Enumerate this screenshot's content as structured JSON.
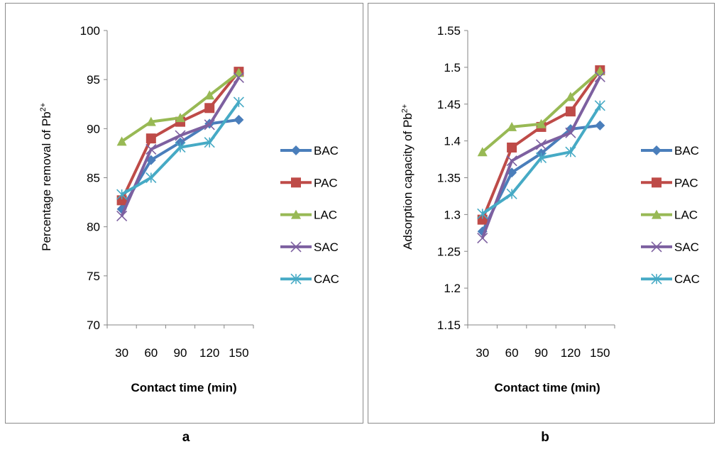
{
  "captions": [
    "a",
    "b"
  ],
  "chart_data": [
    {
      "type": "line",
      "xlabel": "Contact time (min)",
      "ylabel": "Percentage removal of Pb",
      "ylabel_sup": "2+",
      "ylim": [
        70,
        100
      ],
      "yticks": [
        "70",
        "75",
        "80",
        "85",
        "90",
        "95",
        "100"
      ],
      "categories": [
        "30",
        "60",
        "90",
        "120",
        "150"
      ],
      "legend_position": "right",
      "series": [
        {
          "name": "BAC",
          "color": "#4a7ebb",
          "marker": "diamond",
          "values": [
            81.8,
            86.8,
            88.6,
            90.5,
            90.9
          ]
        },
        {
          "name": "PAC",
          "color": "#be4b48",
          "marker": "square",
          "values": [
            82.7,
            89.0,
            90.7,
            92.1,
            95.8
          ]
        },
        {
          "name": "LAC",
          "color": "#98b954",
          "marker": "triangle",
          "values": [
            88.7,
            90.7,
            91.1,
            93.4,
            95.7
          ]
        },
        {
          "name": "SAC",
          "color": "#7d60a0",
          "marker": "x",
          "values": [
            81.1,
            87.9,
            89.3,
            90.4,
            95.2
          ]
        },
        {
          "name": "CAC",
          "color": "#46aac5",
          "marker": "star",
          "values": [
            83.3,
            85.0,
            88.1,
            88.6,
            92.7
          ]
        }
      ]
    },
    {
      "type": "line",
      "xlabel": "Contact time (min)",
      "ylabel": "Adsorption capacity of Pb",
      "ylabel_sup": "2+",
      "ylim": [
        1.15,
        1.55
      ],
      "yticks": [
        "1.15",
        "1.2",
        "1.25",
        "1.3",
        "1.35",
        "1.4",
        "1.45",
        "1.5",
        "1.55"
      ],
      "categories": [
        "30",
        "60",
        "90",
        "120",
        "150"
      ],
      "legend_position": "right",
      "series": [
        {
          "name": "BAC",
          "color": "#4a7ebb",
          "marker": "diamond",
          "values": [
            1.277,
            1.357,
            1.383,
            1.416,
            1.421
          ]
        },
        {
          "name": "PAC",
          "color": "#be4b48",
          "marker": "square",
          "values": [
            1.293,
            1.391,
            1.419,
            1.44,
            1.496
          ]
        },
        {
          "name": "LAC",
          "color": "#98b954",
          "marker": "triangle",
          "values": [
            1.385,
            1.419,
            1.423,
            1.46,
            1.495
          ]
        },
        {
          "name": "SAC",
          "color": "#7d60a0",
          "marker": "x",
          "values": [
            1.268,
            1.373,
            1.395,
            1.411,
            1.487
          ]
        },
        {
          "name": "CAC",
          "color": "#46aac5",
          "marker": "star",
          "values": [
            1.301,
            1.328,
            1.377,
            1.385,
            1.448
          ]
        }
      ]
    }
  ]
}
